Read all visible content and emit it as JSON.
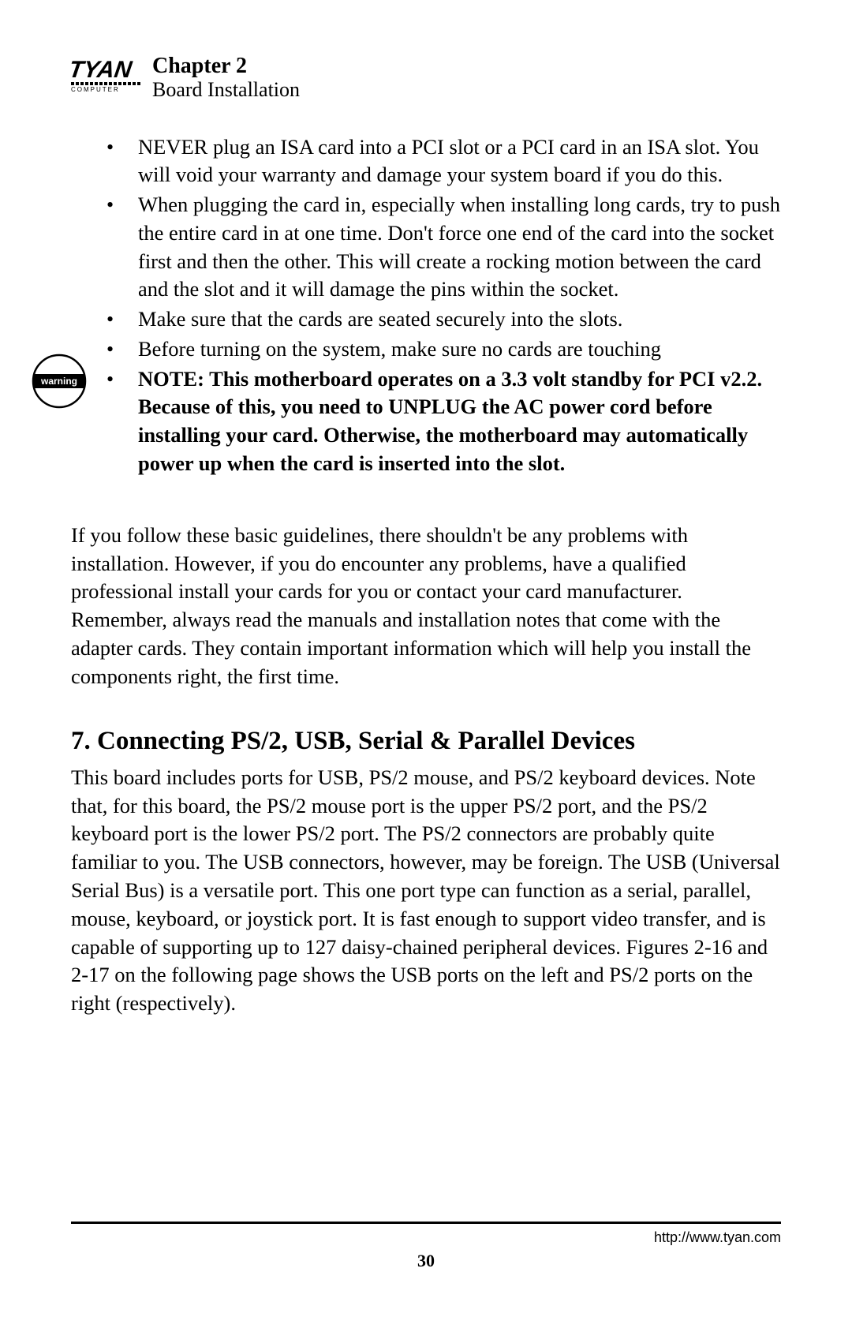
{
  "header": {
    "logo_brand": "TYAN",
    "logo_sub": "COMPUTER",
    "chapter": "Chapter 2",
    "subtitle": "Board Installation"
  },
  "bullets": [
    {
      "text": "NEVER plug an ISA card into a PCI slot or a PCI card in an ISA slot. You will void your warranty and damage your system board if you do this.",
      "bold": false
    },
    {
      "text": "When plugging the card in, especially when installing long cards, try to push the entire card in at one time. Don't force one end of the card into the socket first and then the other. This will create a rocking motion between the card and the slot and it will damage the pins within the socket.",
      "bold": false
    },
    {
      "text": "Make sure that the cards are seated securely into the slots.",
      "bold": false
    },
    {
      "text": "Before turning on the system, make sure no cards are touching",
      "bold": false
    },
    {
      "text": "NOTE:  This motherboard operates on a 3.3 volt standby for PCI v2.2.  Because of this, you need to UNPLUG the AC power cord before installing your card.  Otherwise, the motherboard may automatically power up when the card is inserted into the slot.",
      "bold": true
    }
  ],
  "warning_label": "warning",
  "paragraph1": "If you follow these basic guidelines, there shouldn't be any problems with installation.  However, if you do encounter any problems, have a qualified professional install your cards for you or contact your card manufacturer. Remember, always read the manuals and installation notes that come with the adapter cards. They contain important information which will help you install the components right, the first time.",
  "section7": {
    "heading": "7.  Connecting PS/2, USB, Serial & Parallel Devices",
    "body": "This board includes ports for USB, PS/2 mouse, and PS/2 keyboard devices. Note that, for this board, the PS/2 mouse port is the upper PS/2 port, and the PS/2 keyboard port is the lower PS/2 port. The PS/2 connectors are probably quite familiar to you. The USB connectors, however, may be foreign. The USB (Universal Serial Bus) is a versatile port. This one port type can function as a serial, parallel, mouse, keyboard, or joystick port. It is fast enough to support video transfer, and is capable of supporting up to 127 daisy-chained peripheral devices.  Figures 2-16 and 2-17 on the following page shows the USB ports on the left and PS/2 ports on the right (respectively)."
  },
  "footer": {
    "url": "http://www.tyan.com",
    "page": "30"
  },
  "colors": {
    "text": "#000000",
    "background": "#ffffff"
  }
}
